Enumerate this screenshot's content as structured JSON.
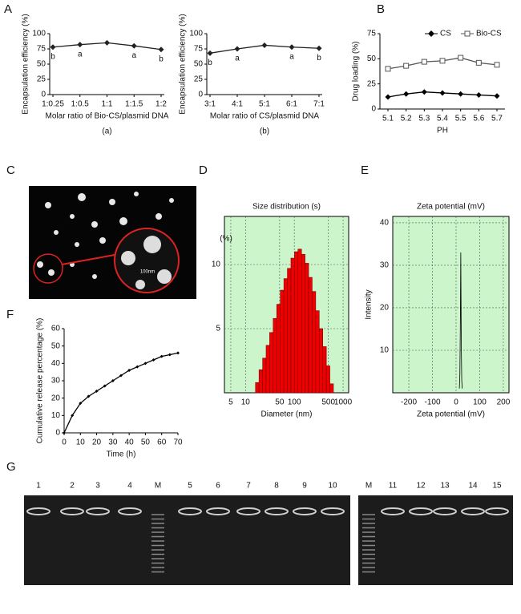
{
  "panel_labels": [
    "A",
    "B",
    "C",
    "D",
    "E",
    "F",
    "G"
  ],
  "micrograph": {
    "scale_label": "100nm"
  },
  "chart_data": [
    {
      "type": "line",
      "y_label": "Encapsulation  efficiency (%)",
      "x_label": "Molar ratio of Bio-CS/plasmid DNA",
      "caption": "(a)",
      "categories": [
        "1:0.25",
        "1:0.5",
        "1:1",
        "1:1.5",
        "1:2"
      ],
      "values": [
        78,
        82,
        85,
        80,
        74
      ],
      "point_labels": [
        "b",
        "a",
        null,
        "a",
        "b"
      ],
      "color": "#222222",
      "ylim": [
        0,
        100
      ],
      "yticks": [
        0,
        25,
        50,
        75,
        100
      ]
    },
    {
      "type": "line",
      "y_label": "Encapsulation  efficiency (%)",
      "x_label": "Molar ratio of CS/plasmid DNA",
      "caption": "(b)",
      "categories": [
        "3:1",
        "4:1",
        "5:1",
        "6:1",
        "7:1"
      ],
      "values": [
        68,
        75,
        81,
        78,
        76
      ],
      "point_labels": [
        "b",
        "a",
        null,
        "a",
        "b"
      ],
      "color": "#222222",
      "ylim": [
        0,
        100
      ],
      "yticks": [
        0,
        25,
        50,
        75,
        100
      ]
    },
    {
      "type": "line",
      "y_label": "Drug loading (%)",
      "x_label": "PH",
      "categories": [
        "5.1",
        "5.2",
        "5.3",
        "5.4",
        "5.5",
        "5.6",
        "5.7"
      ],
      "series": [
        {
          "name": "CS",
          "color": "#000000",
          "values": [
            12,
            15,
            17,
            16,
            15,
            14,
            13
          ]
        },
        {
          "name": "Bio-CS",
          "color": "#555555",
          "values": [
            40,
            43,
            47,
            48,
            51,
            46,
            44
          ]
        }
      ],
      "ylim": [
        0,
        75
      ],
      "yticks": [
        0,
        25,
        50,
        75
      ],
      "legend": "top-right"
    },
    {
      "type": "histogram",
      "title": "Size distribution (s)",
      "y_label": "(%)",
      "x_label": "Diameter (nm)",
      "bins": [
        16,
        18.9,
        22.4,
        26.4,
        31.2,
        36.9,
        43.6,
        51.6,
        61,
        72.1,
        85.2,
        100.7,
        119,
        140.7,
        166.3,
        196.6,
        232.4,
        274.7,
        324.7,
        383.8,
        453.7,
        536.3,
        634
      ],
      "values": [
        0.8,
        1.8,
        2.7,
        3.7,
        4.7,
        5.8,
        6.9,
        8,
        8.9,
        9.7,
        10.5,
        11,
        11.2,
        10.8,
        10.1,
        9,
        7.9,
        6.4,
        5,
        3.6,
        2.1,
        0.7
      ],
      "color": "#ee0000",
      "background": "#ccf5cc",
      "log_x": true,
      "grid": true,
      "xlim": [
        3.7,
        1300
      ],
      "xticks": [
        5,
        10,
        50,
        100,
        500,
        1000
      ],
      "ylim": [
        0,
        13.75
      ],
      "yticks": [
        5,
        10
      ]
    },
    {
      "type": "line",
      "title": "Zeta potential (mV)",
      "y_label": "Intensity",
      "x_label": "Zeta potential (mV)",
      "x": [
        14,
        16,
        18,
        20,
        22,
        24,
        26
      ],
      "values": [
        1,
        4,
        15,
        33,
        12,
        3,
        1
      ],
      "color": "#000000",
      "background": "#ccf5cc",
      "grid": true,
      "xlim": [
        -268,
        224
      ],
      "xticks": [
        -200,
        -100,
        0,
        100,
        200
      ],
      "ylim": [
        0,
        41.5
      ],
      "yticks": [
        10,
        20,
        30,
        40
      ]
    },
    {
      "type": "line",
      "y_label": "Cumulative release percentage (%)",
      "x_label": "Time (h)",
      "x": [
        0,
        5,
        10,
        15,
        20,
        25,
        30,
        35,
        40,
        45,
        50,
        55,
        60,
        65,
        70
      ],
      "values": [
        0,
        10,
        17,
        21,
        24,
        27,
        30,
        33,
        36,
        38,
        40,
        42,
        44,
        45,
        46
      ],
      "color": "#000000",
      "xlim": [
        0,
        70
      ],
      "xticks": [
        0,
        10,
        20,
        30,
        40,
        50,
        60,
        70
      ],
      "ylim": [
        0,
        60
      ],
      "yticks": [
        0,
        10,
        20,
        30,
        40,
        50,
        60
      ]
    }
  ],
  "gel": {
    "lanes_left": [
      "1",
      "2",
      "3",
      "4",
      "M",
      "5",
      "6",
      "7",
      "8",
      "9",
      "10"
    ],
    "lanes_right": [
      "M",
      "11",
      "12",
      "13",
      "14",
      "15"
    ]
  }
}
